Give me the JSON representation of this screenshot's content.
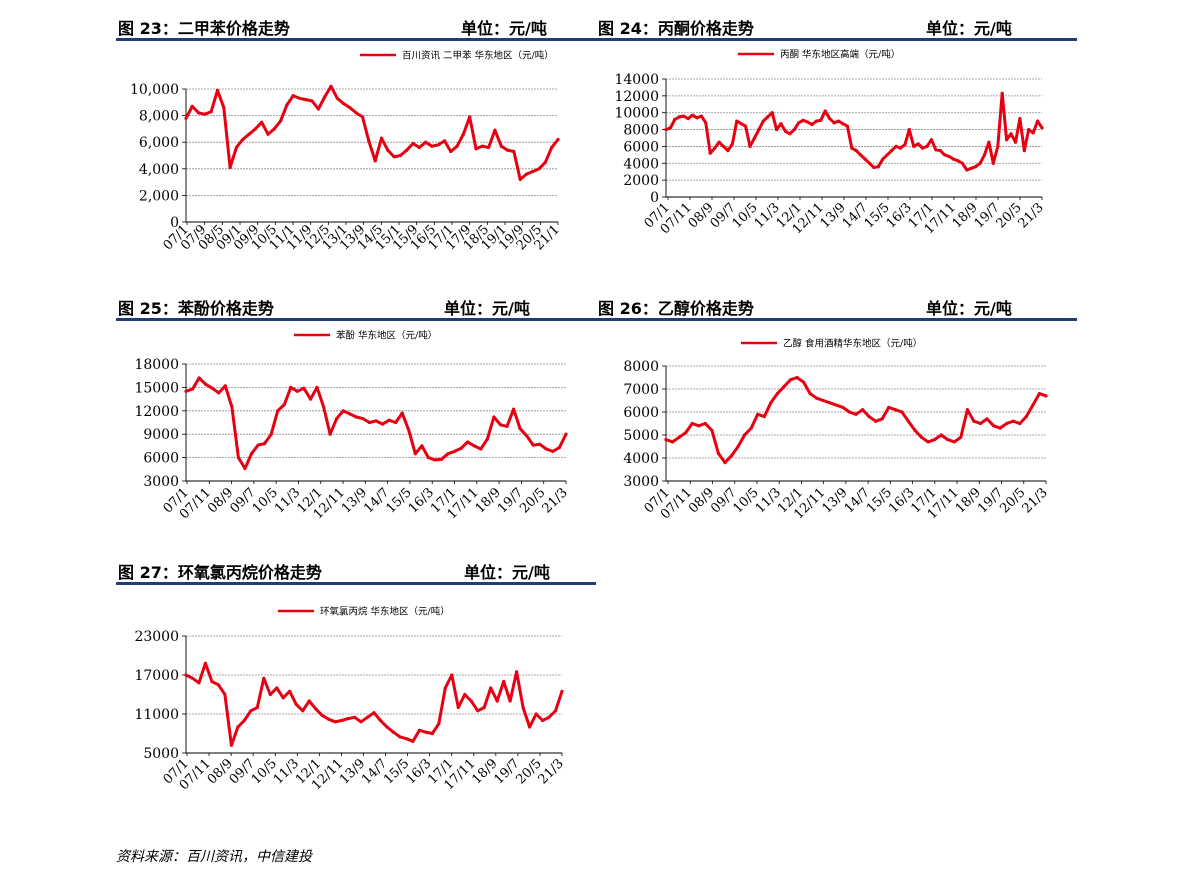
{
  "colors": {
    "series": "#e60012",
    "header_rule": "#1f3f74",
    "grid": "#8c8c8c"
  },
  "footer": "资料来源：百川资讯，中信建投",
  "chart_data": [
    {
      "type": "line",
      "header": "图 23：二甲苯价格走势",
      "unit": "单位：元/吨",
      "legend": "百川资讯 二甲苯 华东地区（元/吨）",
      "y_ticks": [
        "0",
        "2,000",
        "4,000",
        "6,000",
        "8,000",
        "10,000"
      ],
      "ylim": [
        0,
        10000
      ],
      "x_ticks": [
        "07/1",
        "07/9",
        "08/5",
        "09/1",
        "09/9",
        "10/5",
        "11/1",
        "11/9",
        "12/5",
        "13/1",
        "13/9",
        "14/5",
        "15/1",
        "15/9",
        "16/5",
        "17/1",
        "17/9",
        "18/5",
        "19/1",
        "19/9",
        "20/5",
        "21/1"
      ],
      "x": [
        0,
        3,
        6,
        9,
        12,
        15,
        18,
        21,
        24,
        27,
        30,
        33,
        36,
        39,
        42,
        45,
        48,
        51,
        54,
        57,
        60,
        63,
        66,
        69,
        72,
        75,
        78,
        81,
        84,
        87,
        90,
        93,
        96,
        99,
        102,
        105,
        108,
        111,
        114,
        117,
        120,
        123,
        126,
        129,
        132,
        135,
        138,
        141,
        144,
        147,
        150,
        153,
        156,
        159,
        162,
        165,
        168,
        171,
        174,
        177
      ],
      "values": [
        7800,
        8700,
        8200,
        8100,
        8300,
        9900,
        8600,
        4100,
        5600,
        6200,
        6600,
        7000,
        7500,
        6600,
        7000,
        7600,
        8800,
        9500,
        9300,
        9200,
        9100,
        8500,
        9400,
        10200,
        9300,
        8900,
        8600,
        8200,
        7900,
        6100,
        4600,
        6300,
        5400,
        4900,
        5000,
        5400,
        5900,
        5600,
        6000,
        5700,
        5800,
        6100,
        5300,
        5700,
        6600,
        7900,
        5500,
        5700,
        5600,
        6900,
        5700,
        5400,
        5300,
        3200,
        3600,
        3800,
        4000,
        4500,
        5600,
        6200
      ]
    },
    {
      "type": "line",
      "header": "图 24：丙酮价格走势",
      "unit": "单位：元/吨",
      "legend": "丙酮 华东地区高端（元/吨）",
      "y_ticks": [
        "0",
        "2000",
        "4000",
        "6000",
        "8000",
        "10000",
        "12000",
        "14000"
      ],
      "ylim": [
        0,
        14000
      ],
      "x_ticks": [
        "07/1",
        "07/11",
        "08/9",
        "09/7",
        "10/5",
        "11/3",
        "12/1",
        "12/11",
        "13/9",
        "14/7",
        "15/5",
        "16/3",
        "17/1",
        "17/11",
        "18/9",
        "19/7",
        "20/5",
        "21/3"
      ],
      "x": [
        0,
        2,
        4,
        6,
        8,
        10,
        12,
        14,
        16,
        18,
        20,
        22,
        24,
        26,
        28,
        30,
        32,
        34,
        36,
        38,
        40,
        42,
        44,
        46,
        48,
        50,
        52,
        54,
        56,
        58,
        60,
        62,
        64,
        66,
        68,
        70,
        72,
        74,
        76,
        78,
        80,
        82,
        84,
        86,
        88,
        90,
        92,
        94,
        96,
        98,
        100,
        102,
        104,
        106,
        108,
        110,
        112,
        114,
        116,
        118,
        120,
        122,
        124,
        126,
        128,
        130,
        132,
        134,
        136,
        138,
        140,
        142,
        144,
        146,
        148,
        150,
        152,
        154,
        156,
        158,
        160,
        162,
        164,
        166,
        168,
        170
      ],
      "values": [
        8000,
        8200,
        9200,
        9500,
        9600,
        9300,
        9700,
        9400,
        9600,
        8800,
        5200,
        5800,
        6500,
        6000,
        5500,
        6300,
        9000,
        8700,
        8400,
        6000,
        7000,
        8000,
        9000,
        9500,
        10000,
        8000,
        8700,
        7800,
        7500,
        8000,
        8800,
        9100,
        8900,
        8600,
        9000,
        9100,
        10200,
        9300,
        8800,
        9000,
        8700,
        8400,
        5800,
        5500,
        5000,
        4500,
        4000,
        3500,
        3600,
        4500,
        5000,
        5500,
        6000,
        5800,
        6200,
        8000,
        6000,
        6300,
        5800,
        6000,
        6800,
        5600,
        5500,
        5000,
        4800,
        4500,
        4300,
        4000,
        3200,
        3400,
        3600,
        4000,
        5000,
        6500,
        4000,
        6000,
        12300,
        6800,
        7500,
        6500,
        9300,
        5500,
        8000,
        7600,
        9000,
        8200
      ]
    },
    {
      "type": "line",
      "header": "图 25：苯酚价格走势",
      "unit": "单位：元/吨",
      "legend": "苯酚 华东地区（元/吨）",
      "y_ticks": [
        "3000",
        "6000",
        "9000",
        "12000",
        "15000",
        "18000"
      ],
      "ylim": [
        3000,
        18000
      ],
      "x_ticks": [
        "07/1",
        "07/11",
        "08/9",
        "09/7",
        "10/5",
        "11/3",
        "12/1",
        "12/11",
        "13/9",
        "14/7",
        "15/5",
        "16/3",
        "17/1",
        "17/11",
        "18/9",
        "19/7",
        "20/5",
        "21/3"
      ],
      "x": [
        0,
        3,
        6,
        9,
        12,
        15,
        18,
        21,
        24,
        27,
        30,
        33,
        36,
        39,
        42,
        45,
        48,
        51,
        54,
        57,
        60,
        63,
        66,
        69,
        72,
        75,
        78,
        81,
        84,
        87,
        90,
        93,
        96,
        99,
        102,
        105,
        108,
        111,
        114,
        117,
        120,
        123,
        126,
        129,
        132,
        135,
        138,
        141,
        144,
        147,
        150,
        153,
        156,
        159,
        162,
        165,
        168,
        171,
        174
      ],
      "values": [
        14500,
        14800,
        16200,
        15400,
        14900,
        14300,
        15200,
        12500,
        6000,
        4600,
        6500,
        7600,
        7800,
        9000,
        12000,
        12800,
        15000,
        14500,
        14900,
        13500,
        15000,
        12500,
        9000,
        11000,
        12000,
        11600,
        11200,
        11000,
        10500,
        10700,
        10300,
        10800,
        10500,
        11700,
        9500,
        6500,
        7500,
        6000,
        5700,
        5800,
        6500,
        6800,
        7200,
        8000,
        7500,
        7100,
        8400,
        11200,
        10200,
        10000,
        12200,
        9700,
        8800,
        7600,
        7700,
        7100,
        6800,
        7300,
        9000
      ]
    },
    {
      "type": "line",
      "header": "图 26：乙醇价格走势",
      "unit": "单位：元/吨",
      "legend": "乙醇 食用酒精华东地区（元/吨）",
      "y_ticks": [
        "3000",
        "4000",
        "5000",
        "6000",
        "7000",
        "8000"
      ],
      "ylim": [
        3000,
        8000
      ],
      "x_ticks": [
        "07/1",
        "07/11",
        "08/9",
        "09/7",
        "10/5",
        "11/3",
        "12/1",
        "12/11",
        "13/9",
        "14/7",
        "15/5",
        "16/3",
        "17/1",
        "17/11",
        "18/9",
        "19/7",
        "20/5",
        "21/3"
      ],
      "x": [
        0,
        3,
        6,
        9,
        12,
        15,
        18,
        21,
        24,
        27,
        30,
        33,
        36,
        39,
        42,
        45,
        48,
        51,
        54,
        57,
        60,
        63,
        66,
        69,
        72,
        75,
        78,
        81,
        84,
        87,
        90,
        93,
        96,
        99,
        102,
        105,
        108,
        111,
        114,
        117,
        120,
        123,
        126,
        129,
        132,
        135,
        138,
        141,
        144,
        147,
        150,
        153,
        156,
        159,
        162,
        165,
        168,
        171,
        174
      ],
      "values": [
        4800,
        4700,
        4900,
        5100,
        5500,
        5400,
        5500,
        5200,
        4200,
        3800,
        4100,
        4500,
        5000,
        5300,
        5900,
        5800,
        6400,
        6800,
        7100,
        7400,
        7500,
        7300,
        6800,
        6600,
        6500,
        6400,
        6300,
        6200,
        6000,
        5900,
        6100,
        5800,
        5600,
        5700,
        6200,
        6100,
        6000,
        5600,
        5200,
        4900,
        4700,
        4800,
        5000,
        4800,
        4700,
        4900,
        6100,
        5600,
        5500,
        5700,
        5400,
        5300,
        5500,
        5600,
        5500,
        5800,
        6300,
        6800,
        6700
      ]
    },
    {
      "type": "line",
      "header": "图 27：环氧氯丙烷价格走势",
      "unit": "单位：元/吨",
      "legend": "环氧氯丙烷 华东地区（元/吨）",
      "y_ticks": [
        "5000",
        "11000",
        "17000",
        "23000"
      ],
      "ylim": [
        5000,
        23000
      ],
      "x_ticks": [
        "07/1",
        "07/11",
        "08/9",
        "09/7",
        "10/5",
        "11/3",
        "12/1",
        "12/11",
        "13/9",
        "14/7",
        "15/5",
        "16/3",
        "17/1",
        "17/11",
        "18/9",
        "19/7",
        "20/5",
        "21/3"
      ],
      "x": [
        0,
        3,
        6,
        9,
        12,
        15,
        18,
        21,
        24,
        27,
        30,
        33,
        36,
        39,
        42,
        45,
        48,
        51,
        54,
        57,
        60,
        63,
        66,
        69,
        72,
        75,
        78,
        81,
        84,
        87,
        90,
        93,
        96,
        99,
        102,
        105,
        108,
        111,
        114,
        117,
        120,
        123,
        126,
        129,
        132,
        135,
        138,
        141,
        144,
        147,
        150,
        153,
        156,
        159,
        162,
        165,
        168,
        171,
        174
      ],
      "values": [
        17000,
        16500,
        15800,
        18800,
        16000,
        15500,
        14000,
        6200,
        9000,
        10000,
        11500,
        12000,
        16500,
        14000,
        15000,
        13500,
        14500,
        12500,
        11500,
        13000,
        11800,
        10800,
        10200,
        9800,
        10000,
        10300,
        10500,
        9800,
        10500,
        11200,
        10000,
        9000,
        8200,
        7500,
        7200,
        6800,
        8500,
        8200,
        8000,
        9500,
        15000,
        17000,
        12000,
        14000,
        13000,
        11500,
        12000,
        15000,
        13000,
        16000,
        13000,
        17500,
        12000,
        9000,
        11000,
        10000,
        10500,
        11500,
        14500
      ]
    }
  ]
}
